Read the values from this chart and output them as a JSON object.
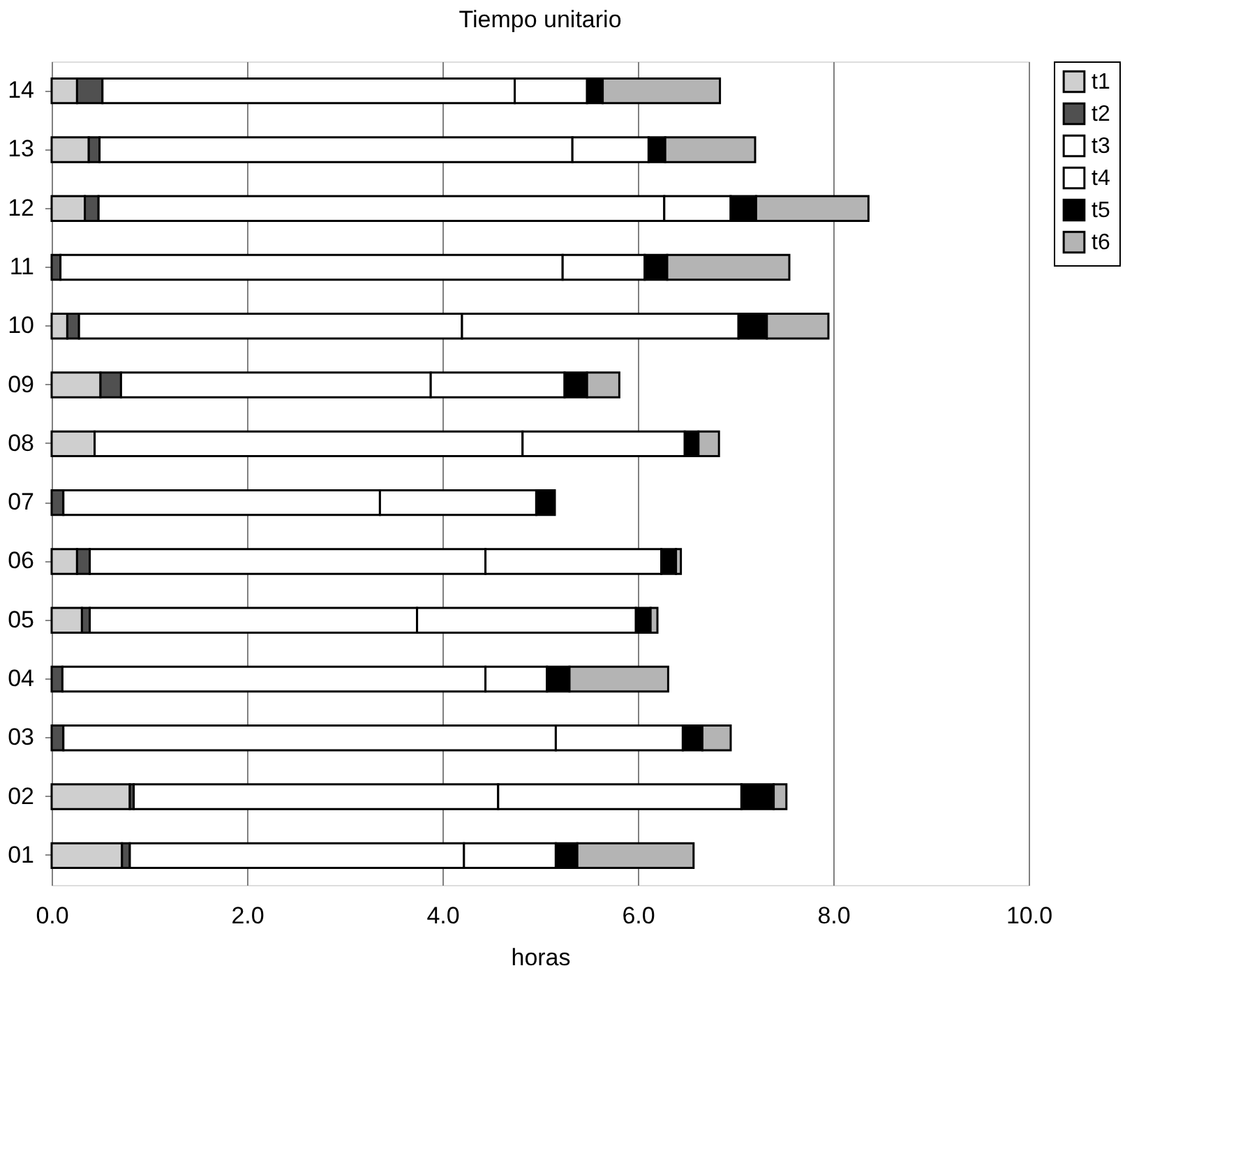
{
  "chart_data": {
    "type": "bar",
    "orientation": "horizontal",
    "stacked": true,
    "title": "Tiempo unitario",
    "xlabel": "horas",
    "categories": [
      "14",
      "13",
      "12",
      "11",
      "10",
      "09",
      "08",
      "07",
      "06",
      "05",
      "04",
      "03",
      "02",
      "01"
    ],
    "series": [
      {
        "name": "t1",
        "color": "#cfcfcf",
        "values": [
          0.26,
          0.38,
          0.34,
          0,
          0.16,
          0.5,
          0.44,
          0,
          0.26,
          0.31,
          0,
          0,
          0.8,
          0.72
        ]
      },
      {
        "name": "t2",
        "color": "#505050",
        "values": [
          0.26,
          0.11,
          0.14,
          0.09,
          0.12,
          0.21,
          0,
          0.12,
          0.13,
          0.08,
          0.11,
          0.12,
          0.04,
          0.08
        ]
      },
      {
        "name": "t3",
        "color": "#ffffff",
        "values": [
          4.22,
          4.84,
          5.79,
          5.14,
          3.92,
          3.17,
          4.38,
          3.24,
          4.05,
          3.35,
          4.33,
          5.04,
          3.73,
          3.42
        ]
      },
      {
        "name": "t4",
        "color": "#ffffff",
        "values": [
          0.74,
          0.78,
          0.68,
          0.84,
          2.83,
          1.37,
          1.66,
          1.6,
          1.8,
          2.24,
          0.63,
          1.3,
          2.49,
          0.94
        ]
      },
      {
        "name": "t5",
        "color": "#000000",
        "values": [
          0.16,
          0.17,
          0.26,
          0.23,
          0.29,
          0.23,
          0.14,
          0.19,
          0.15,
          0.15,
          0.23,
          0.2,
          0.33,
          0.22
        ]
      },
      {
        "name": "t6",
        "color": "#b4b4b4",
        "values": [
          1.2,
          0.92,
          1.15,
          1.25,
          0.63,
          0.33,
          0.21,
          0,
          0.05,
          0.07,
          1.01,
          0.29,
          0.13,
          1.19
        ]
      }
    ],
    "xlim": [
      0,
      10
    ],
    "xticks": [
      {
        "value": 0,
        "label": "0.0"
      },
      {
        "value": 2,
        "label": "2.0"
      },
      {
        "value": 4,
        "label": "4.0"
      },
      {
        "value": 6,
        "label": "6.0"
      },
      {
        "value": 8,
        "label": "8.0"
      },
      {
        "value": 10,
        "label": "10.0"
      }
    ],
    "grid": "x",
    "legend": "right"
  }
}
